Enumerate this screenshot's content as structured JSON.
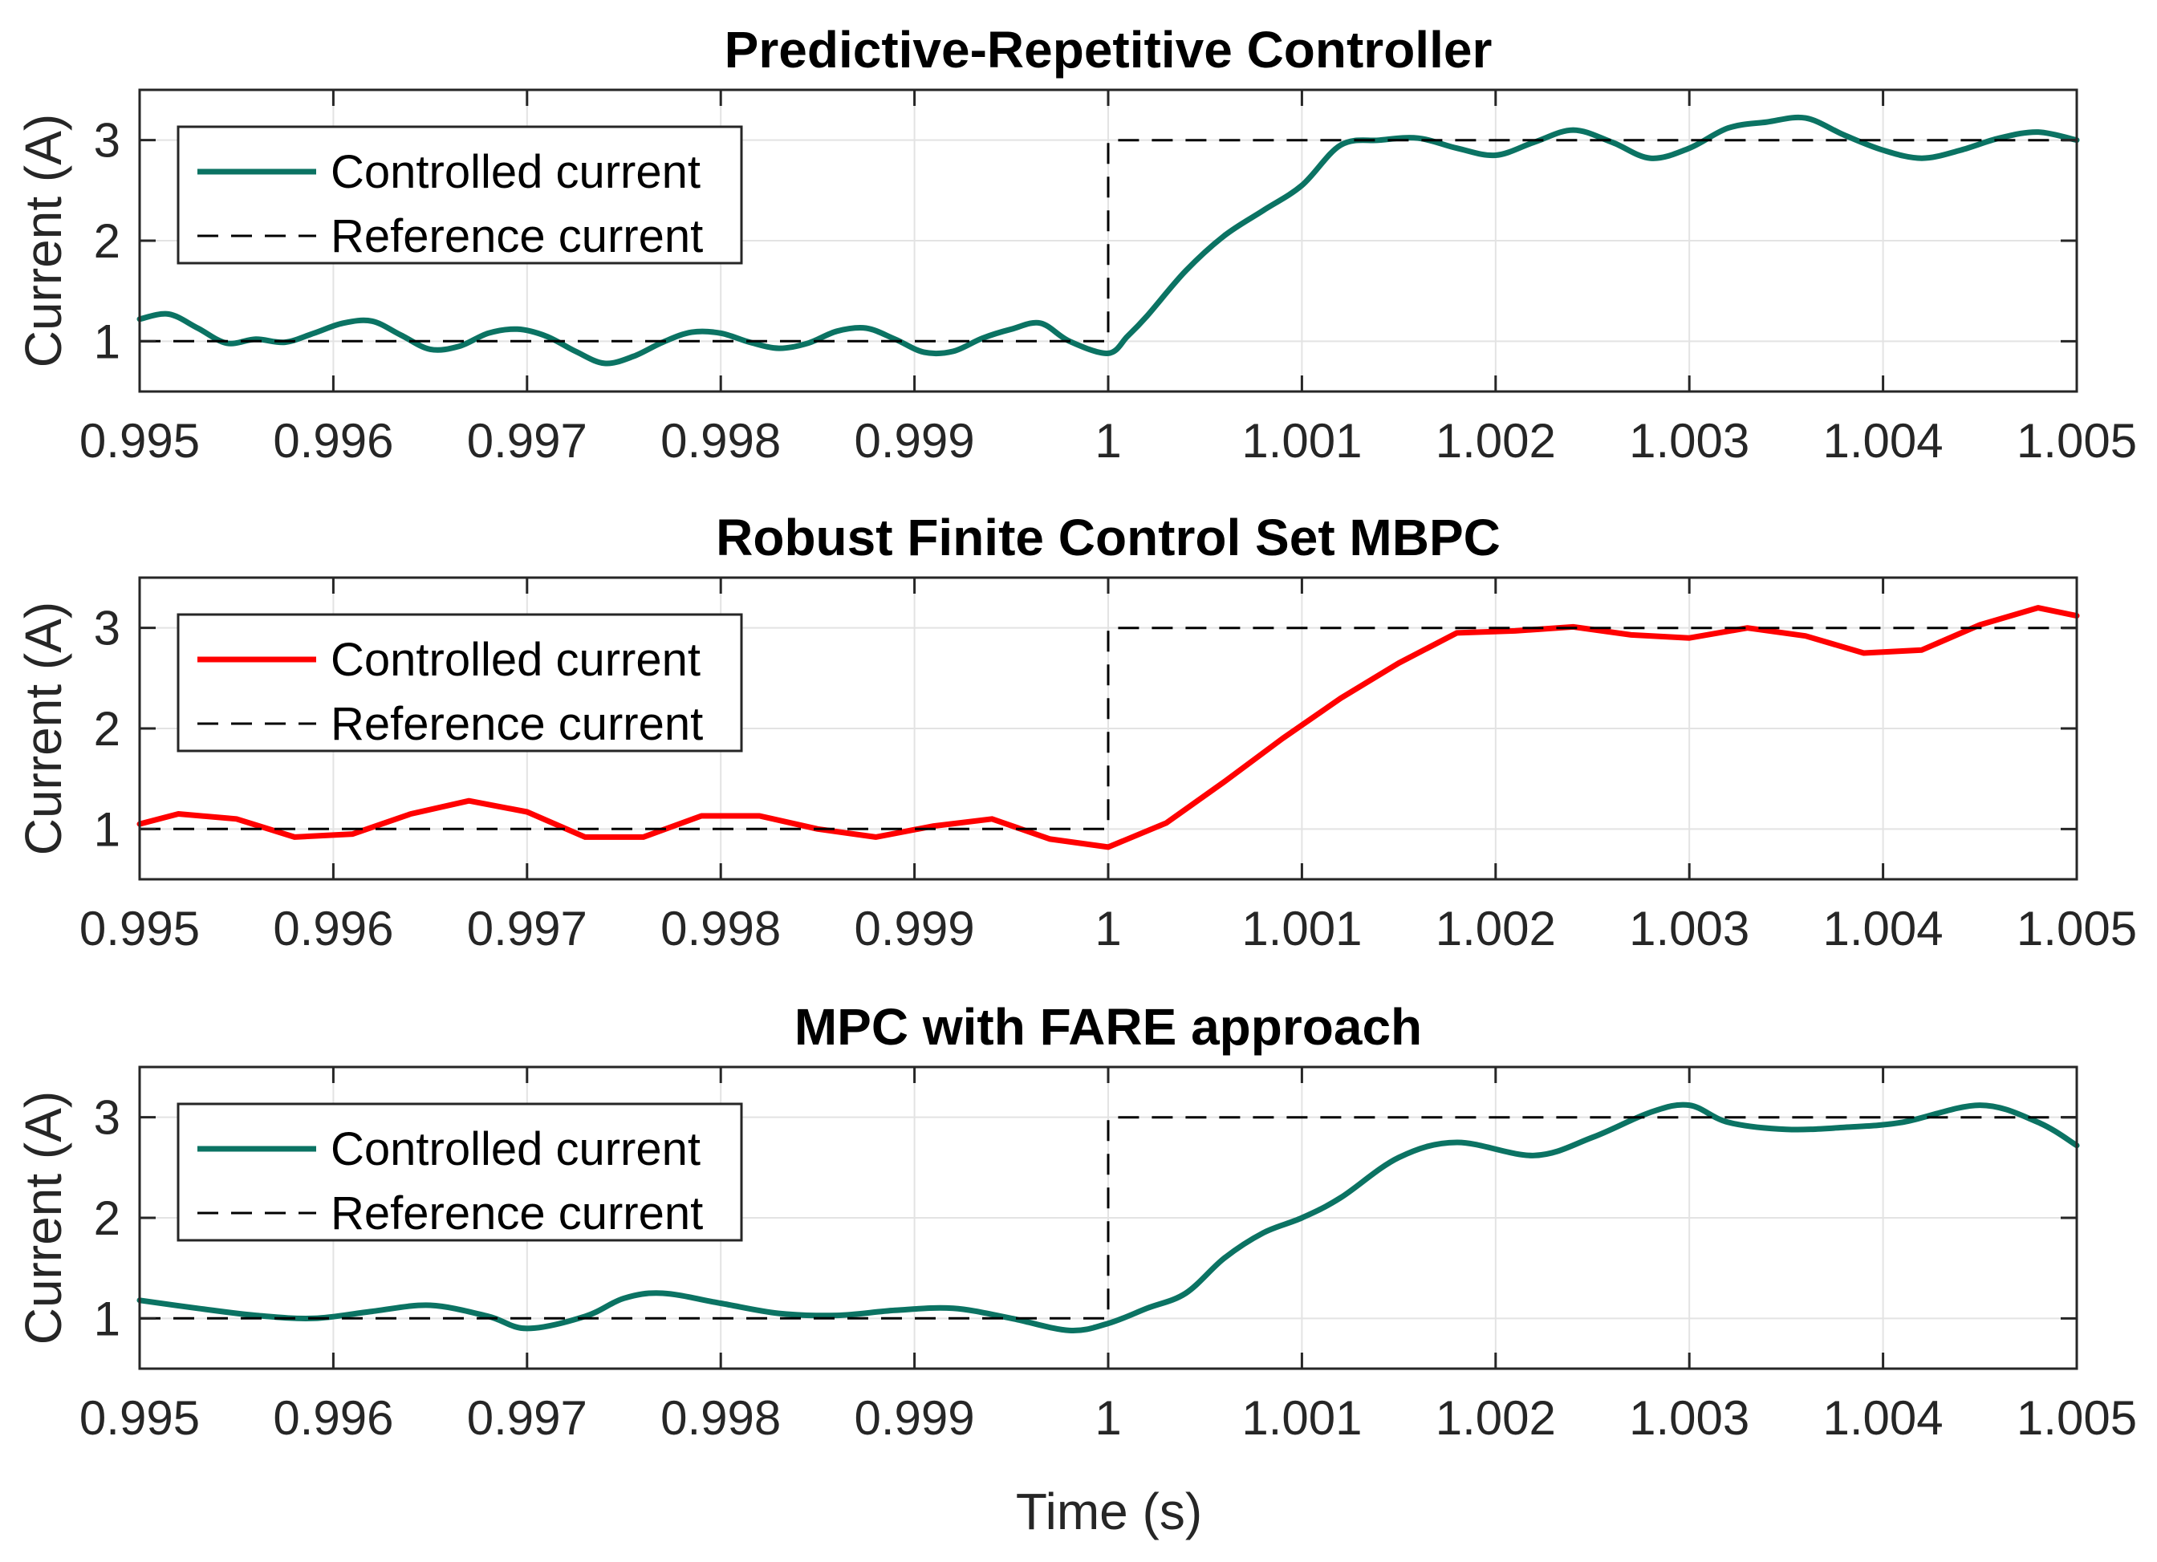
{
  "chart_data": [
    {
      "type": "line",
      "title": "Predictive-Repetitive Controller",
      "xlabel": "",
      "ylabel": "Current (A)",
      "xlim": [
        0.995,
        1.005
      ],
      "ylim": [
        0.5,
        3.5
      ],
      "xticks": [
        0.995,
        0.996,
        0.997,
        0.998,
        0.999,
        1,
        1.001,
        1.002,
        1.003,
        1.004,
        1.005
      ],
      "xtick_labels": [
        "0.995",
        "0.996",
        "0.997",
        "0.998",
        "0.999",
        "1",
        "1.001",
        "1.002",
        "1.003",
        "1.004",
        "1.005"
      ],
      "yticks": [
        1,
        2,
        3
      ],
      "ytick_labels": [
        "1",
        "2",
        "3"
      ],
      "grid": true,
      "legend": "top-left",
      "series": [
        {
          "name": "Controlled current",
          "style": "solid",
          "color": "#0b7363",
          "smooth": true,
          "x": [
            0.995,
            0.99515,
            0.9953,
            0.99545,
            0.9956,
            0.99575,
            0.9959,
            0.99605,
            0.9962,
            0.99635,
            0.9965,
            0.99665,
            0.9968,
            0.99695,
            0.9971,
            0.99725,
            0.9974,
            0.99755,
            0.9977,
            0.99785,
            0.998,
            0.99815,
            0.9983,
            0.99845,
            0.9986,
            0.99875,
            0.9989,
            0.99905,
            0.9992,
            0.99935,
            0.9995,
            0.99965,
            0.9998,
            1.0,
            1.0001,
            1.0002,
            1.0004,
            1.0006,
            1.0008,
            1.001,
            1.0012,
            1.0014,
            1.0016,
            1.0018,
            1.002,
            1.0022,
            1.0024,
            1.0026,
            1.0028,
            1.003,
            1.0032,
            1.0034,
            1.0036,
            1.0038,
            1.004,
            1.0042,
            1.0044,
            1.0046,
            1.0048,
            1.005
          ],
          "y": [
            1.22,
            1.27,
            1.13,
            0.98,
            1.02,
            0.99,
            1.08,
            1.18,
            1.2,
            1.06,
            0.92,
            0.95,
            1.08,
            1.12,
            1.05,
            0.9,
            0.78,
            0.85,
            0.99,
            1.09,
            1.08,
            0.99,
            0.93,
            0.98,
            1.1,
            1.13,
            1.02,
            0.89,
            0.9,
            1.03,
            1.12,
            1.18,
            1.0,
            0.88,
            1.05,
            1.25,
            1.7,
            2.05,
            2.3,
            2.55,
            2.95,
            3.0,
            3.02,
            2.92,
            2.85,
            2.98,
            3.1,
            2.98,
            2.82,
            2.92,
            3.12,
            3.18,
            3.22,
            3.05,
            2.9,
            2.82,
            2.9,
            3.02,
            3.08,
            3.0
          ]
        },
        {
          "name": "Reference current",
          "style": "dashed",
          "color": "#000000",
          "smooth": false,
          "x": [
            0.995,
            1.0,
            1.0,
            1.005
          ],
          "y": [
            1,
            1,
            3,
            3
          ]
        }
      ]
    },
    {
      "type": "line",
      "title": "Robust Finite Control Set MBPC",
      "xlabel": "",
      "ylabel": "Current (A)",
      "xlim": [
        0.995,
        1.005
      ],
      "ylim": [
        0.5,
        3.5
      ],
      "xticks": [
        0.995,
        0.996,
        0.997,
        0.998,
        0.999,
        1,
        1.001,
        1.002,
        1.003,
        1.004,
        1.005
      ],
      "xtick_labels": [
        "0.995",
        "0.996",
        "0.997",
        "0.998",
        "0.999",
        "1",
        "1.001",
        "1.002",
        "1.003",
        "1.004",
        "1.005"
      ],
      "yticks": [
        1,
        2,
        3
      ],
      "ytick_labels": [
        "1",
        "2",
        "3"
      ],
      "grid": true,
      "legend": "top-left",
      "series": [
        {
          "name": "Controlled current",
          "style": "solid",
          "color": "#ff0000",
          "smooth": false,
          "x": [
            0.995,
            0.9952,
            0.9955,
            0.9958,
            0.9961,
            0.9964,
            0.9967,
            0.997,
            0.9973,
            0.9976,
            0.9979,
            0.9982,
            0.9985,
            0.9988,
            0.9991,
            0.9994,
            0.9997,
            1.0,
            1.0003,
            1.0006,
            1.0009,
            1.0012,
            1.0015,
            1.0018,
            1.0021,
            1.0024,
            1.0027,
            1.003,
            1.0033,
            1.0036,
            1.0039,
            1.0042,
            1.0045,
            1.0048,
            1.005
          ],
          "y": [
            1.05,
            1.15,
            1.1,
            0.92,
            0.95,
            1.15,
            1.28,
            1.17,
            0.92,
            0.92,
            1.13,
            1.13,
            1.0,
            0.92,
            1.03,
            1.1,
            0.9,
            0.82,
            1.06,
            1.47,
            1.9,
            2.3,
            2.65,
            2.95,
            2.97,
            3.01,
            2.93,
            2.9,
            3.0,
            2.92,
            2.75,
            2.78,
            3.03,
            3.2,
            3.12
          ]
        },
        {
          "name": "Reference current",
          "style": "dashed",
          "color": "#000000",
          "smooth": false,
          "x": [
            0.995,
            1.0,
            1.0,
            1.005
          ],
          "y": [
            1,
            1,
            3,
            3
          ]
        }
      ]
    },
    {
      "type": "line",
      "title": "MPC with FARE approach",
      "xlabel": "Time (s)",
      "ylabel": "Current (A)",
      "xlim": [
        0.995,
        1.005
      ],
      "ylim": [
        0.5,
        3.5
      ],
      "xticks": [
        0.995,
        0.996,
        0.997,
        0.998,
        0.999,
        1,
        1.001,
        1.002,
        1.003,
        1.004,
        1.005
      ],
      "xtick_labels": [
        "0.995",
        "0.996",
        "0.997",
        "0.998",
        "0.999",
        "1",
        "1.001",
        "1.002",
        "1.003",
        "1.004",
        "1.005"
      ],
      "yticks": [
        1,
        2,
        3
      ],
      "ytick_labels": [
        "1",
        "2",
        "3"
      ],
      "grid": true,
      "legend": "top-left",
      "series": [
        {
          "name": "Controlled current",
          "style": "solid",
          "color": "#0b7363",
          "smooth": true,
          "x": [
            0.995,
            0.9953,
            0.9956,
            0.9959,
            0.9962,
            0.9965,
            0.9968,
            0.997,
            0.9973,
            0.9975,
            0.9977,
            0.998,
            0.9983,
            0.9986,
            0.9989,
            0.9992,
            0.9995,
            0.9998,
            1.0,
            1.0002,
            1.0004,
            1.0006,
            1.0008,
            1.001,
            1.0012,
            1.0015,
            1.0018,
            1.0022,
            1.0025,
            1.0028,
            1.003,
            1.0032,
            1.0035,
            1.0038,
            1.0041,
            1.0045,
            1.0048,
            1.005
          ],
          "y": [
            1.18,
            1.1,
            1.03,
            1.0,
            1.07,
            1.13,
            1.02,
            0.9,
            1.02,
            1.2,
            1.25,
            1.15,
            1.05,
            1.03,
            1.08,
            1.1,
            1.0,
            0.88,
            0.95,
            1.1,
            1.25,
            1.6,
            1.85,
            2.0,
            2.2,
            2.6,
            2.75,
            2.62,
            2.8,
            3.05,
            3.12,
            2.95,
            2.88,
            2.9,
            2.95,
            3.12,
            2.95,
            2.72
          ]
        },
        {
          "name": "Reference current",
          "style": "dashed",
          "color": "#000000",
          "smooth": false,
          "x": [
            0.995,
            1.0,
            1.0,
            1.005
          ],
          "y": [
            1,
            1,
            3,
            3
          ]
        }
      ]
    }
  ]
}
